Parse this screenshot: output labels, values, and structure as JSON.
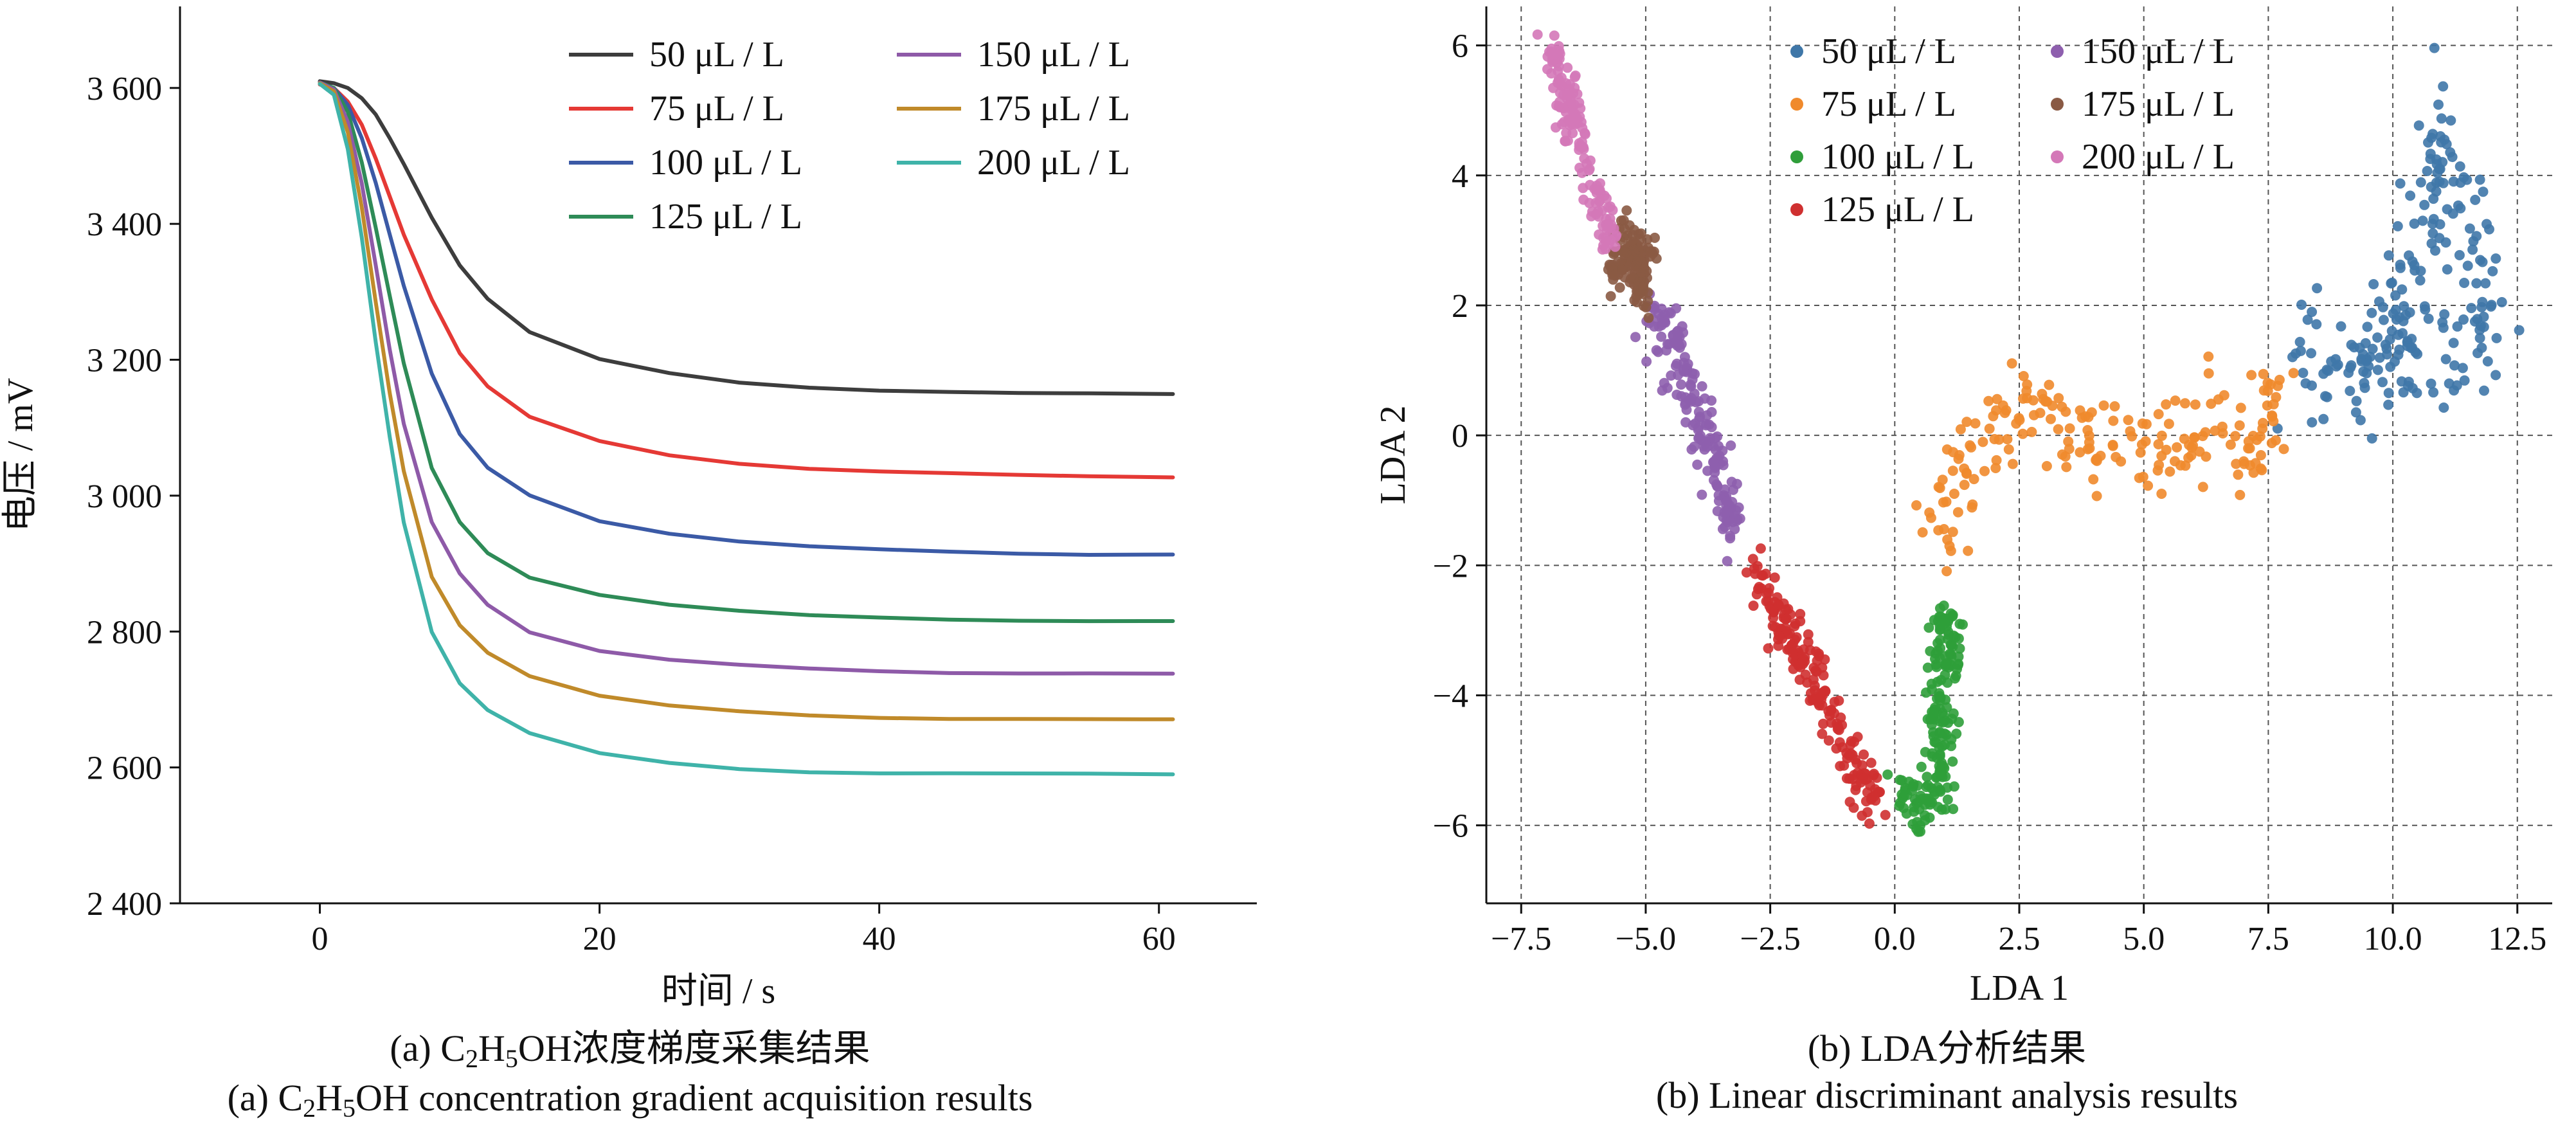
{
  "chart_data": [
    {
      "type": "line",
      "xlabel": "时间 / s",
      "ylabel": "电压 / mV",
      "xlim": [
        -10,
        67
      ],
      "ylim": [
        2400,
        3720
      ],
      "xticks": [
        0,
        20,
        40,
        60
      ],
      "yticks": [
        2400,
        2600,
        2800,
        3000,
        3200,
        3400,
        3600
      ],
      "ytick_labels": [
        "2 400",
        "2 600",
        "2 800",
        "3 000",
        "3 200",
        "3 400",
        "3 600"
      ],
      "legend_position": "top-right",
      "x": [
        0,
        1,
        2,
        3,
        4,
        5,
        6,
        8,
        10,
        12,
        15,
        20,
        25,
        30,
        35,
        40,
        45,
        50,
        55,
        61
      ],
      "series": [
        {
          "name": "50 μL / L",
          "color": "#3d3d3d",
          "values": [
            3610,
            3607,
            3600,
            3585,
            3560,
            3525,
            3488,
            3410,
            3340,
            3290,
            3240,
            3200,
            3180,
            3167,
            3160,
            3155,
            3152,
            3150,
            3150,
            3150
          ]
        },
        {
          "name": "75 μL / L",
          "color": "#e53935",
          "values": [
            3605,
            3600,
            3580,
            3545,
            3495,
            3440,
            3385,
            3290,
            3210,
            3160,
            3115,
            3080,
            3060,
            3048,
            3040,
            3035,
            3032,
            3030,
            3029,
            3028
          ]
        },
        {
          "name": "100 μL / L",
          "color": "#3b5aa6",
          "values": [
            3608,
            3600,
            3575,
            3525,
            3460,
            3385,
            3310,
            3180,
            3090,
            3040,
            3000,
            2963,
            2945,
            2933,
            2925,
            2920,
            2917,
            2915,
            2914,
            2914
          ]
        },
        {
          "name": "125 μL / L",
          "color": "#2e8b57",
          "values": [
            3608,
            3600,
            3565,
            3490,
            3395,
            3295,
            3195,
            3040,
            2960,
            2915,
            2880,
            2855,
            2840,
            2830,
            2823,
            2820,
            2818,
            2817,
            2816,
            2815
          ]
        },
        {
          "name": "150 μL / L",
          "color": "#8e5aa8",
          "values": [
            3608,
            3598,
            3550,
            3460,
            3340,
            3215,
            3105,
            2960,
            2885,
            2840,
            2800,
            2772,
            2758,
            2750,
            2745,
            2742,
            2740,
            2739,
            2738,
            2737
          ]
        },
        {
          "name": "175 μL / L",
          "color": "#c08a2a",
          "values": [
            3607,
            3595,
            3535,
            3425,
            3285,
            3150,
            3035,
            2880,
            2810,
            2770,
            2735,
            2705,
            2690,
            2682,
            2677,
            2674,
            2672,
            2671,
            2670,
            2670
          ]
        },
        {
          "name": "200 μL / L",
          "color": "#3fb3a9",
          "values": [
            3606,
            3590,
            3510,
            3380,
            3225,
            3085,
            2960,
            2800,
            2725,
            2685,
            2650,
            2620,
            2606,
            2598,
            2594,
            2592,
            2591,
            2590,
            2590,
            2590
          ]
        }
      ],
      "caption_cn_prefix": "(a) C",
      "caption_cn_sub1": "2",
      "caption_cn_mid": "H",
      "caption_cn_sub2": "5",
      "caption_cn_suffix": "OH浓度梯度采集结果",
      "caption_en_prefix": "(a) C",
      "caption_en_sub1": "2",
      "caption_en_mid": "H",
      "caption_en_sub2": "5",
      "caption_en_suffix": "OH concentration gradient acquisition results"
    },
    {
      "type": "scatter",
      "xlabel": "LDA 1",
      "ylabel": "LDA 2",
      "xlim": [
        -8.2,
        13.2
      ],
      "ylim": [
        -7.2,
        6.6
      ],
      "xticks": [
        -7.5,
        -5.0,
        -2.5,
        0.0,
        2.5,
        5.0,
        7.5,
        10.0,
        12.5
      ],
      "xtick_labels": [
        "−7.5",
        "−5.0",
        "−2.5",
        "0.0",
        "2.5",
        "5.0",
        "7.5",
        "10.0",
        "12.5"
      ],
      "yticks": [
        -6,
        -4,
        -2,
        0,
        2,
        4,
        6
      ],
      "ytick_labels": [
        "−6",
        "−4",
        "−2",
        "0",
        "2",
        "4",
        "6"
      ],
      "grid": true,
      "legend_position": "top",
      "series": [
        {
          "name": "50 μL / L",
          "color": "#3f77a8",
          "cluster": [
            [
              8.0,
              1.2
            ],
            [
              9.0,
              1.3
            ],
            [
              10.0,
              1.5
            ],
            [
              10.5,
              3.0
            ],
            [
              11.0,
              4.6
            ],
            [
              11.5,
              3.2
            ],
            [
              12.0,
              1.5
            ],
            [
              10.5,
              1.2
            ],
            [
              9.2,
              0.6
            ]
          ],
          "spread": 0.45,
          "n": 220
        },
        {
          "name": "75 μL / L",
          "color": "#f08a2c",
          "cluster": [
            [
              0.8,
              -1.6
            ],
            [
              1.2,
              -0.6
            ],
            [
              2.0,
              0.1
            ],
            [
              2.8,
              0.6
            ],
            [
              3.5,
              0.0
            ],
            [
              4.5,
              -0.3
            ],
            [
              5.5,
              0.1
            ],
            [
              6.5,
              0.0
            ],
            [
              7.3,
              -0.5
            ],
            [
              7.6,
              1.0
            ]
          ],
          "spread": 0.38,
          "n": 200
        },
        {
          "name": "100 μL / L",
          "color": "#2f9e3a",
          "cluster": [
            [
              0.1,
              -5.5
            ],
            [
              0.6,
              -5.8
            ],
            [
              0.9,
              -5.2
            ],
            [
              0.9,
              -4.4
            ],
            [
              1.0,
              -3.5
            ],
            [
              1.0,
              -2.8
            ]
          ],
          "spread": 0.25,
          "n": 190
        },
        {
          "name": "125 μL / L",
          "color": "#cf3030",
          "cluster": [
            [
              -2.8,
              -2.0
            ],
            [
              -2.3,
              -2.9
            ],
            [
              -1.8,
              -3.5
            ],
            [
              -1.3,
              -4.3
            ],
            [
              -0.9,
              -5.0
            ],
            [
              -0.4,
              -5.6
            ]
          ],
          "spread": 0.22,
          "n": 190
        },
        {
          "name": "150 μL / L",
          "color": "#8e5fae",
          "cluster": [
            [
              -4.9,
              2.0
            ],
            [
              -4.5,
              1.4
            ],
            [
              -4.0,
              0.4
            ],
            [
              -3.6,
              -0.5
            ],
            [
              -3.2,
              -1.5
            ]
          ],
          "spread": 0.22,
          "n": 180
        },
        {
          "name": "175 μL / L",
          "color": "#8a5a44",
          "cluster": [
            [
              -5.6,
              2.5
            ],
            [
              -5.3,
              2.9
            ],
            [
              -5.0,
              2.6
            ],
            [
              -5.2,
              2.2
            ]
          ],
          "spread": 0.22,
          "n": 150
        },
        {
          "name": "200 μL / L",
          "color": "#d478b8",
          "cluster": [
            [
              -6.9,
              5.9
            ],
            [
              -6.6,
              5.2
            ],
            [
              -6.3,
              4.4
            ],
            [
              -6.0,
              3.6
            ],
            [
              -5.7,
              3.0
            ]
          ],
          "spread": 0.18,
          "n": 150
        }
      ],
      "caption_cn": "(b) LDA分析结果",
      "caption_en": "(b) Linear discriminant analysis results"
    }
  ]
}
